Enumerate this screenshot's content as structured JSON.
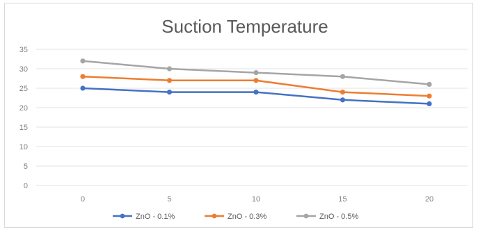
{
  "chart_data": {
    "type": "line",
    "title": "Suction Temperature",
    "xlabel": "",
    "ylabel": "",
    "x": [
      0,
      5,
      10,
      15,
      20
    ],
    "x_tick_labels": [
      "0",
      "5",
      "10",
      "15",
      "20"
    ],
    "y_tick_labels": [
      "0",
      "5",
      "10",
      "15",
      "20",
      "25",
      "30",
      "35"
    ],
    "ylim": [
      0,
      35
    ],
    "y_step": 5,
    "grid": true,
    "legend_position": "bottom",
    "series": [
      {
        "name": "ZnO - 0.1%",
        "color": "#4472c4",
        "values": [
          25,
          24,
          24,
          22,
          21
        ]
      },
      {
        "name": "ZnO - 0.3%",
        "color": "#ed7d31",
        "values": [
          28,
          27,
          27,
          24,
          23
        ]
      },
      {
        "name": "ZnO - 0.5%",
        "color": "#a5a5a5",
        "values": [
          32,
          30,
          29,
          28,
          26
        ]
      }
    ]
  }
}
